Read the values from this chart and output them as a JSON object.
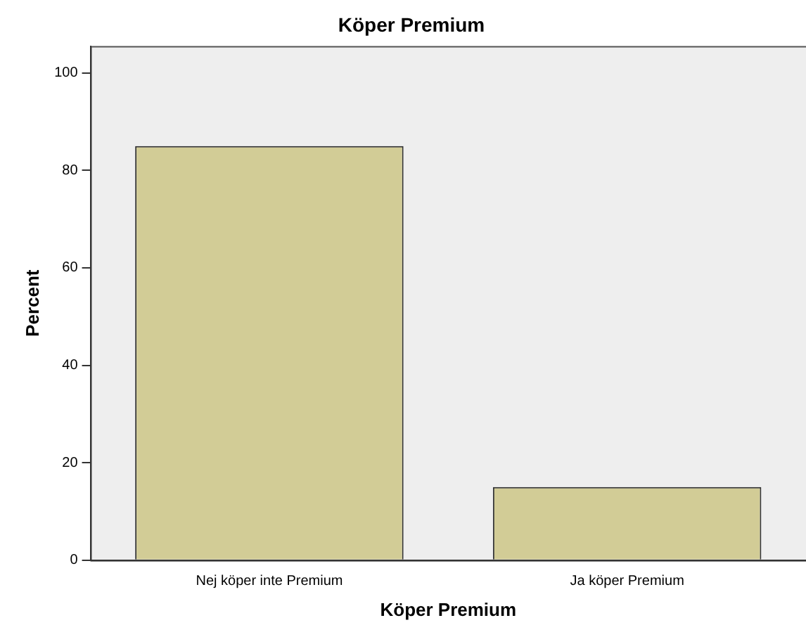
{
  "chart_data": {
    "type": "bar",
    "title": "Köper Premium",
    "xlabel": "Köper Premium",
    "ylabel": "Percent",
    "categories": [
      "Nej köper inte Premium",
      "Ja köper Premium"
    ],
    "values": [
      85,
      15
    ],
    "color": "#d2cc96",
    "ylim": [
      0,
      105.5
    ],
    "yticks": [
      0,
      20,
      40,
      60,
      80,
      100
    ],
    "grid": false,
    "legend": false
  }
}
